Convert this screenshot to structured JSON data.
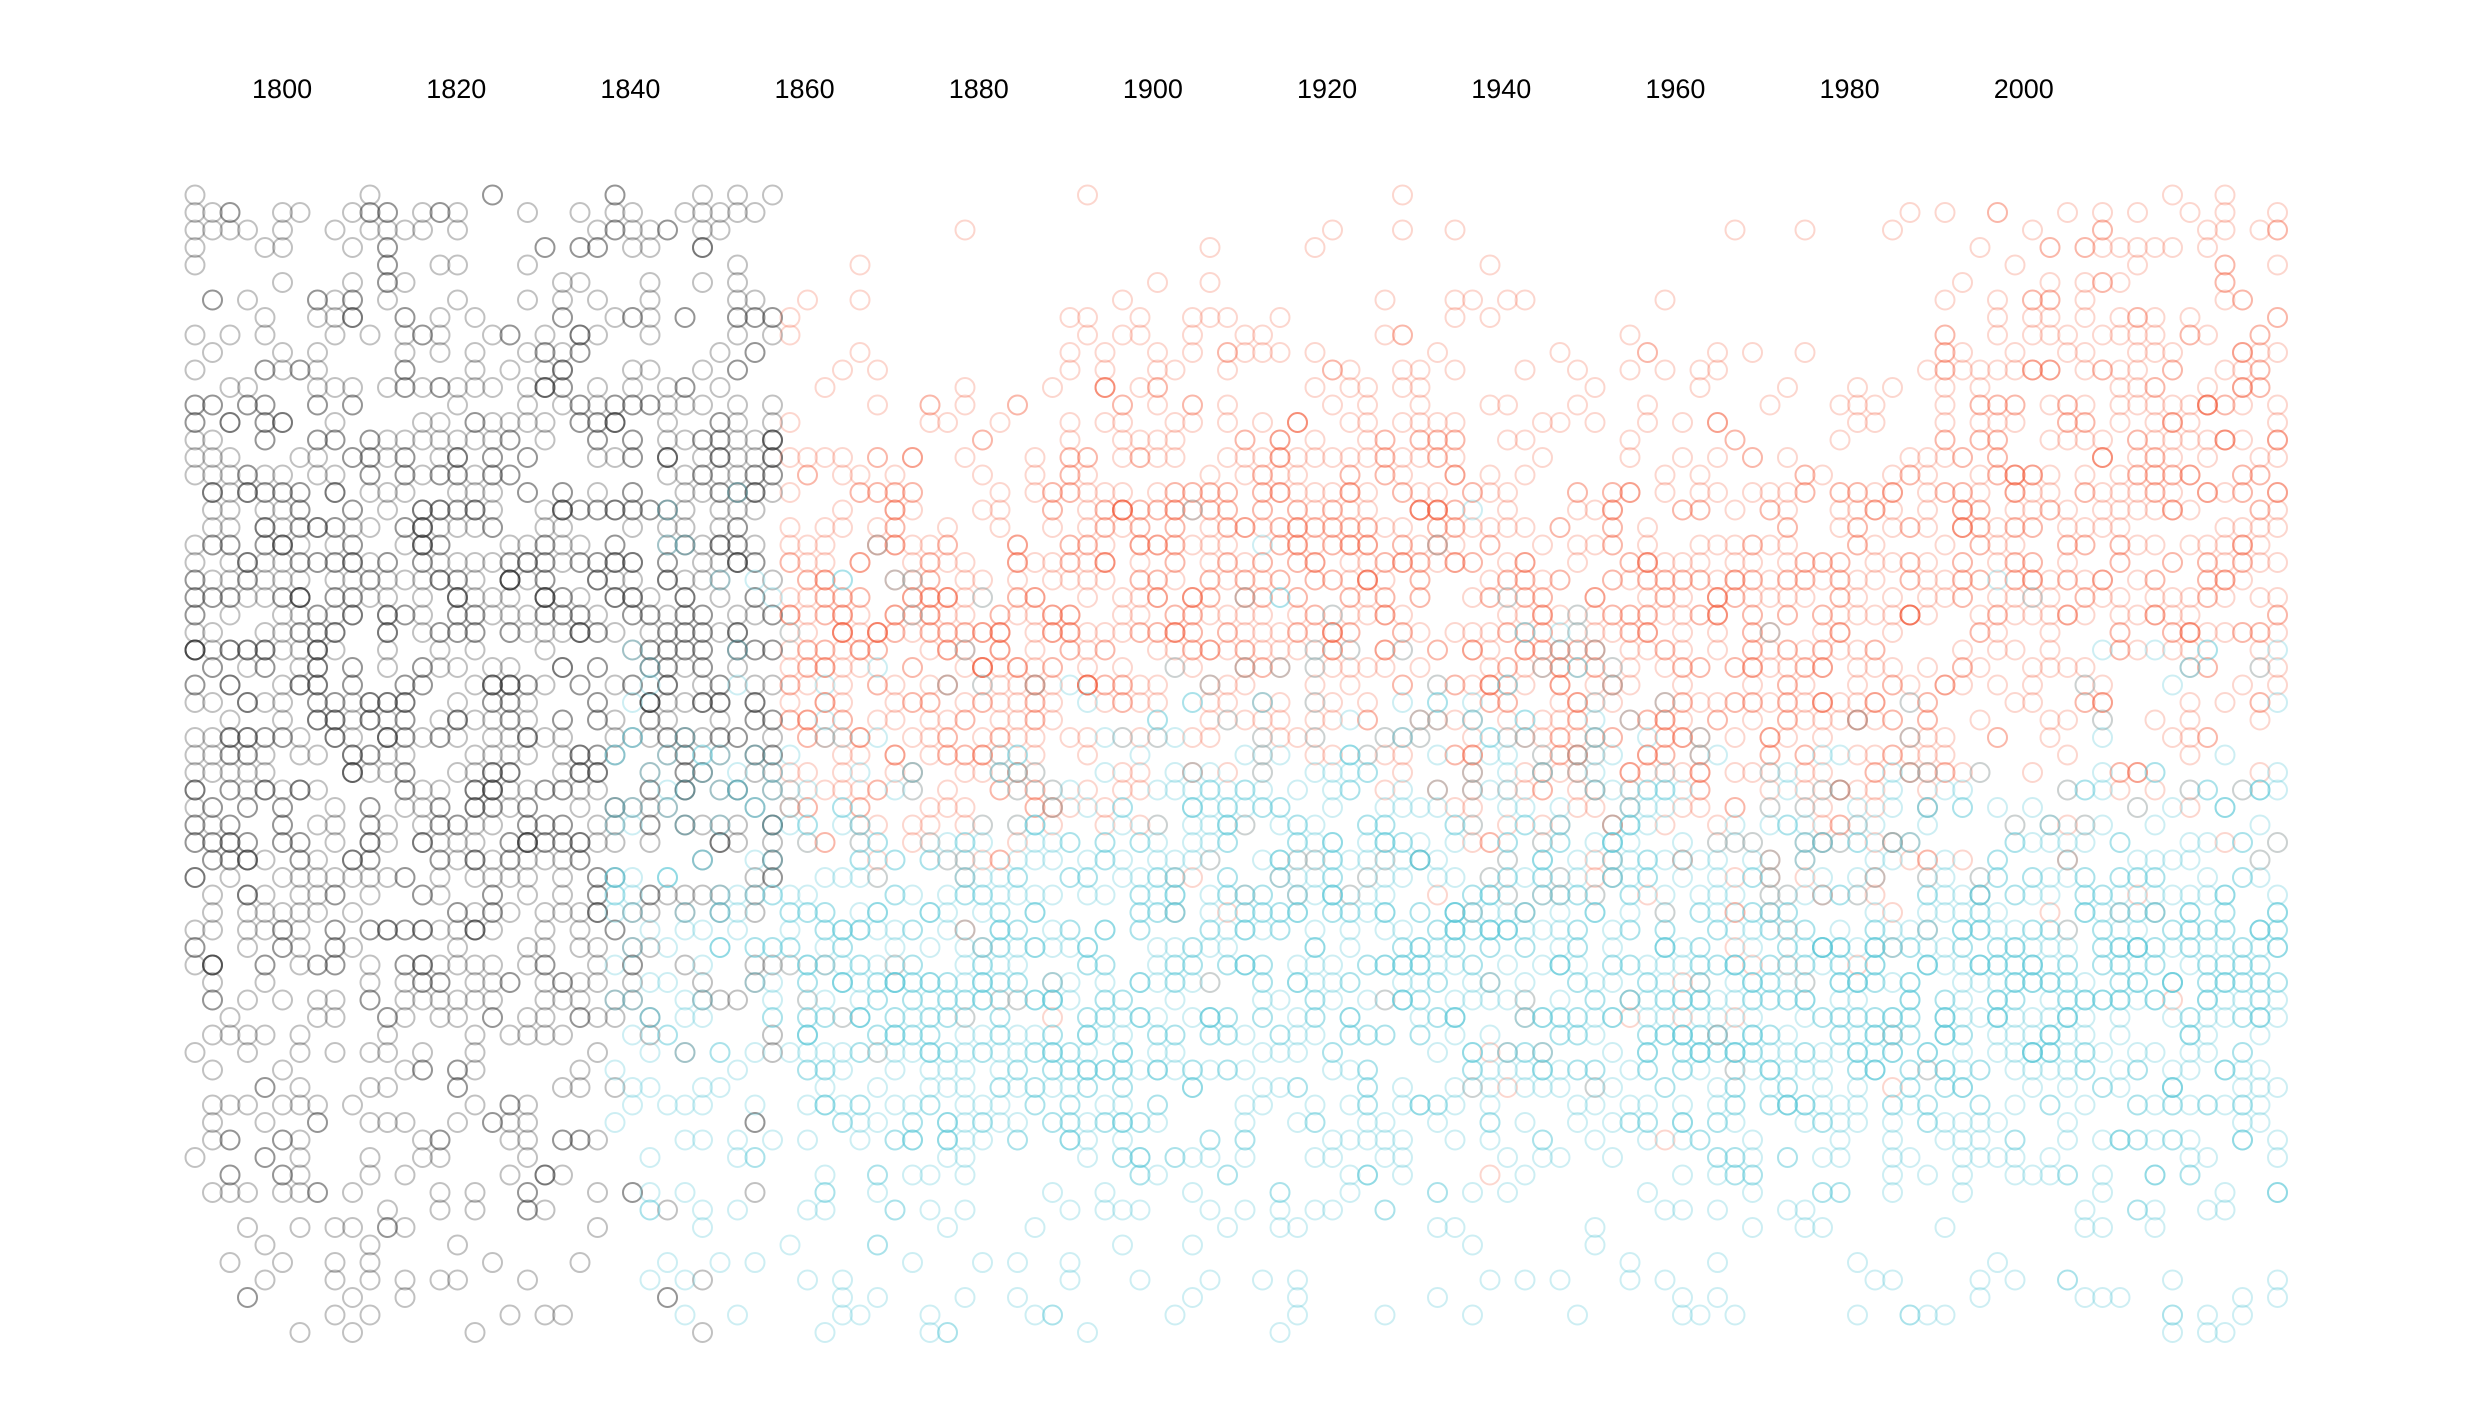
{
  "chart_data": {
    "type": "scatter",
    "title": "",
    "xlabel": "",
    "ylabel": "",
    "x_axis_position": "top",
    "xlim": [
      1790,
      2030
    ],
    "x_ticks": [
      1800,
      1820,
      1840,
      1860,
      1880,
      1900,
      1920,
      1940,
      1960,
      1980,
      2000
    ],
    "y_axis_shown": false,
    "grid": false,
    "legend": "none",
    "marker": "hollow circle",
    "series": [
      {
        "color": "#333333",
        "opacity": 0.3,
        "x_range": [
          1790,
          1857
        ],
        "bands": [
          {
            "x_from": 1790,
            "x_to": 1838,
            "density": "high",
            "y_center_frac": 0.6,
            "y_spread_frac": 0.18
          },
          {
            "x_from": 1790,
            "x_to": 1857,
            "density": "high",
            "y_center_frac": 0.3,
            "y_spread_frac": 0.16
          },
          {
            "x_from": 1838,
            "x_to": 1857,
            "density": "medium",
            "y_center_frac": 0.48,
            "y_spread_frac": 0.2
          }
        ]
      },
      {
        "color": "#f25a3c",
        "opacity": 0.25,
        "x_range": [
          1857,
          2030
        ],
        "bands": [
          {
            "x_from": 1857,
            "x_to": 1890,
            "density": "high",
            "y_center_frac": 0.38,
            "y_spread_frac": 0.1
          },
          {
            "x_from": 1890,
            "x_to": 1935,
            "density": "high",
            "y_center_frac": 0.32,
            "y_spread_frac": 0.11
          },
          {
            "x_from": 1935,
            "x_to": 1990,
            "density": "high",
            "y_center_frac": 0.4,
            "y_spread_frac": 0.12
          },
          {
            "x_from": 1990,
            "x_to": 2030,
            "density": "high",
            "y_center_frac": 0.28,
            "y_spread_frac": 0.13
          }
        ]
      },
      {
        "color": "#5bc8d8",
        "opacity": 0.3,
        "x_range": [
          1838,
          2030
        ],
        "bands": [
          {
            "x_from": 1838,
            "x_to": 1860,
            "density": "medium",
            "y_center_frac": 0.65,
            "y_spread_frac": 0.14
          },
          {
            "x_from": 1860,
            "x_to": 1900,
            "density": "high",
            "y_center_frac": 0.7,
            "y_spread_frac": 0.11
          },
          {
            "x_from": 1900,
            "x_to": 1960,
            "density": "high",
            "y_center_frac": 0.66,
            "y_spread_frac": 0.12
          },
          {
            "x_from": 1960,
            "x_to": 2030,
            "density": "high",
            "y_center_frac": 0.7,
            "y_spread_frac": 0.1
          }
        ]
      }
    ]
  }
}
